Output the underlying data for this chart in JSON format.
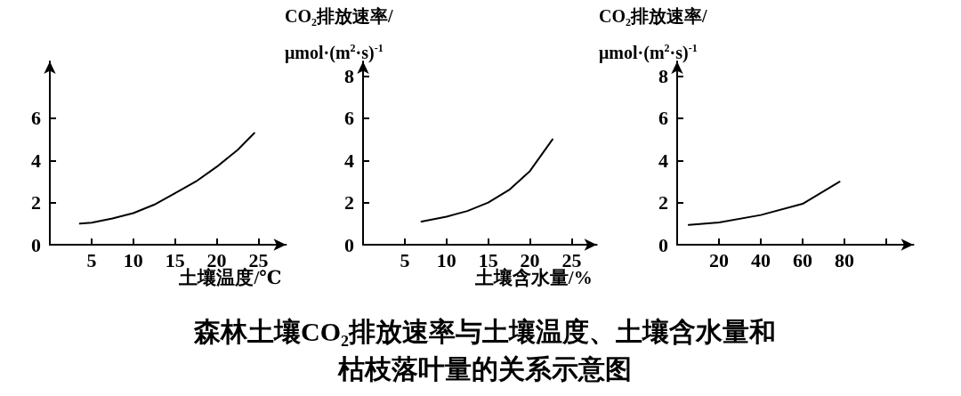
{
  "chart_data": [
    {
      "type": "line",
      "title": "森林土壤CO₂排放速率与土壤温度、土壤含水量和枯枝落叶量的关系示意图",
      "xlabel": "土壤温度/℃",
      "x": [
        3.6,
        5,
        7.5,
        10,
        12.5,
        15,
        17.5,
        20,
        22.5,
        24.5
      ],
      "values": [
        1.0,
        1.05,
        1.25,
        1.5,
        1.9,
        2.45,
        3.0,
        3.7,
        4.5,
        5.3
      ],
      "color": "#000000",
      "xlim": [
        0,
        28.3
      ],
      "xticks": [
        5,
        10,
        15,
        20,
        25
      ],
      "ylim": [
        0,
        8.7
      ],
      "yticks": [
        0,
        2,
        4,
        6
      ],
      "marker": "none",
      "line_style": "solid"
    },
    {
      "type": "line",
      "ylabel": "CO₂排放速率/μmol·(m$^{2}$·s)$^{-1}$",
      "xlabel": "土壤含水量/%",
      "x": [
        7,
        10,
        12.5,
        15,
        17.5,
        20,
        22.7
      ],
      "values": [
        1.1,
        1.33,
        1.6,
        2.0,
        2.6,
        3.5,
        5.0
      ],
      "color": "#000000",
      "xlim": [
        0,
        28
      ],
      "xticks": [
        5,
        10,
        15,
        20,
        25
      ],
      "ylim": [
        0,
        8.7
      ],
      "yticks": [
        0,
        2,
        4,
        6,
        8
      ],
      "marker": "none",
      "line_style": "solid"
    },
    {
      "type": "line",
      "ylabel": "CO₂排放速率/μmol·(m$^{2}$·s)$^{-1}$",
      "x": [
        5.5,
        20,
        40,
        60,
        77.7
      ],
      "values": [
        0.94,
        1.06,
        1.41,
        1.94,
        2.99
      ],
      "color": "#000000",
      "xlim": [
        0,
        113
      ],
      "xticks": [
        20,
        40,
        60,
        80,
        {
          "value": 100,
          "label": null
        }
      ],
      "ylim": [
        0,
        8.7
      ],
      "yticks": [
        0,
        2,
        4,
        6,
        8
      ],
      "marker": "none",
      "line_style": "solid"
    }
  ]
}
